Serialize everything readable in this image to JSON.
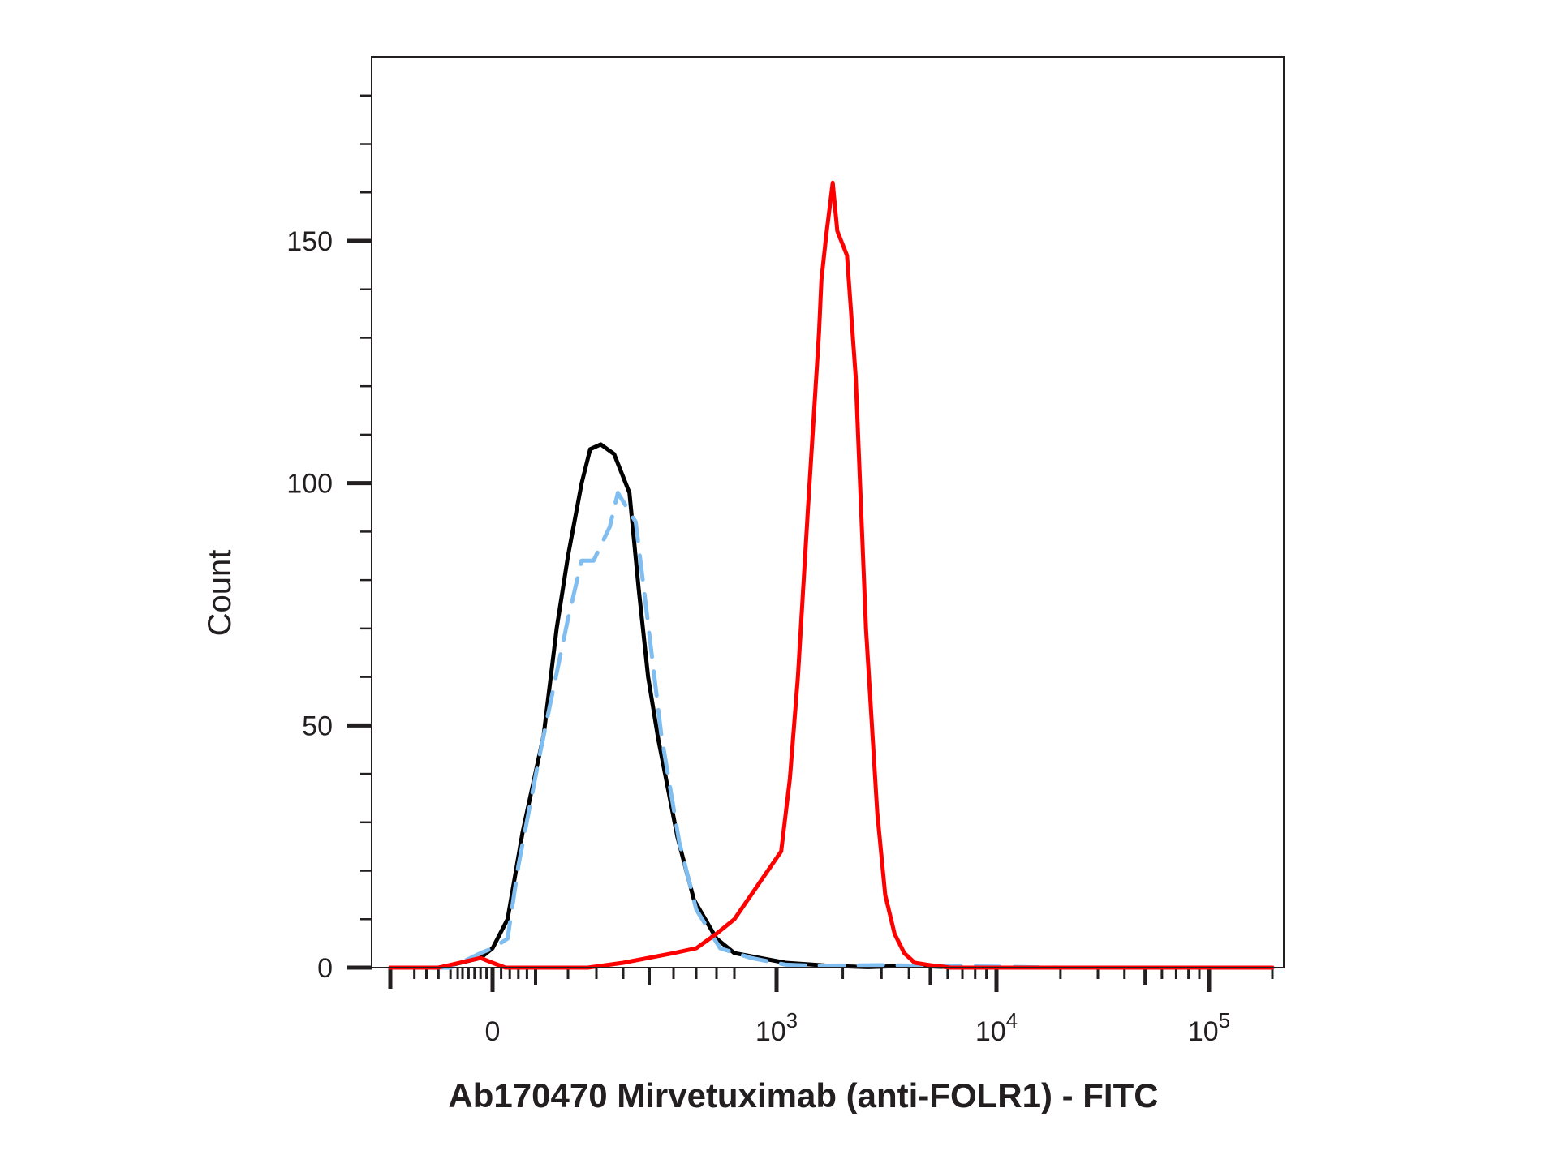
{
  "chart_data": {
    "type": "line",
    "chart_kind": "flow cytometry histogram",
    "xlabel": "Ab170470 Mirvetuximab (anti-FOLR1) - FITC",
    "ylabel": "Count",
    "x_scale": "biexponential (linear near 0, log above ~10^3)",
    "xlim": [
      -400,
      200000
    ],
    "ylim": [
      0,
      188
    ],
    "x_ticks": [
      {
        "value": 0,
        "base": "0",
        "exp": ""
      },
      {
        "value": 1000,
        "base": "10",
        "exp": "3"
      },
      {
        "value": 10000,
        "base": "10",
        "exp": "4"
      },
      {
        "value": 100000,
        "base": "10",
        "exp": "5"
      }
    ],
    "y_ticks": [
      {
        "value": 0,
        "label": "0"
      },
      {
        "value": 50,
        "label": "50"
      },
      {
        "value": 100,
        "label": "100"
      },
      {
        "value": 150,
        "label": "150"
      }
    ],
    "grid": false,
    "legend": "none",
    "series": [
      {
        "color": "#000000",
        "style": "solid",
        "x": [
          -400,
          -200,
          -150,
          -40,
          0,
          35,
          70,
          125,
          165,
          200,
          248,
          278,
          316,
          366,
          424,
          460,
          496,
          538,
          617,
          690,
          800,
          900,
          1100,
          1700,
          2600,
          4000,
          7000,
          20000,
          200000
        ],
        "y": [
          0,
          0,
          0.5,
          2,
          4,
          10,
          28,
          48,
          70,
          85,
          100,
          107,
          108,
          106,
          98,
          78,
          60,
          47,
          27,
          14,
          6,
          3,
          1,
          0.4,
          0.1,
          0.4,
          0,
          0,
          0
        ]
      },
      {
        "color": "#80bdf0",
        "style": "dashed",
        "x": [
          -400,
          -150,
          -40,
          0,
          35,
          60,
          110,
          150,
          200,
          248,
          290,
          350,
          380,
          448,
          489,
          550,
          625,
          700,
          820,
          940,
          1100,
          1500,
          3000,
          7000,
          20000,
          200000
        ],
        "y": [
          0,
          0,
          3,
          4,
          6,
          21,
          43,
          56,
          72,
          84,
          84,
          91,
          98,
          92,
          74,
          48,
          26,
          12,
          4,
          2,
          0.6,
          0.4,
          0.5,
          0.3,
          0,
          0
        ]
      },
      {
        "color": "#ff0000",
        "style": "solid",
        "x": [
          -400,
          -200,
          -40,
          0,
          30,
          60,
          150,
          270,
          400,
          600,
          700,
          800,
          900,
          1050,
          1150,
          1250,
          1390,
          1560,
          1600,
          1680,
          1800,
          1890,
          2090,
          2290,
          2550,
          2870,
          3120,
          3440,
          3810,
          4250,
          5000,
          6200,
          8000,
          20000,
          200000
        ],
        "y": [
          0,
          0,
          2,
          1,
          0,
          0,
          0,
          0,
          1,
          3,
          4,
          7,
          10,
          24,
          39,
          60,
          95,
          131,
          142,
          151,
          162,
          152,
          147,
          122,
          70,
          32,
          15,
          7,
          3,
          1,
          0.5,
          0,
          0,
          0,
          0
        ]
      }
    ]
  }
}
